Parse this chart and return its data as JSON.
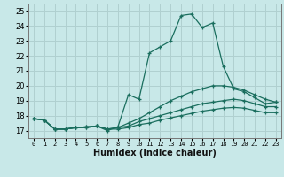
{
  "title": "",
  "xlabel": "Humidex (Indice chaleur)",
  "ylabel": "",
  "bg_color": "#c8e8e8",
  "grid_color": "#b0d0d0",
  "line_color": "#1a6e5e",
  "xlim": [
    -0.5,
    23.5
  ],
  "ylim": [
    16.5,
    25.5
  ],
  "xticks": [
    0,
    1,
    2,
    3,
    4,
    5,
    6,
    7,
    8,
    9,
    10,
    11,
    12,
    13,
    14,
    15,
    16,
    17,
    18,
    19,
    20,
    21,
    22,
    23
  ],
  "yticks": [
    17,
    18,
    19,
    20,
    21,
    22,
    23,
    24,
    25
  ],
  "lines": [
    {
      "x": [
        0,
        1,
        2,
        3,
        4,
        5,
        6,
        7,
        8,
        9,
        10,
        11,
        12,
        13,
        14,
        15,
        16,
        17,
        18,
        19,
        20,
        21,
        22,
        23
      ],
      "y": [
        17.8,
        17.7,
        17.1,
        17.1,
        17.2,
        17.25,
        17.3,
        17.0,
        17.25,
        19.4,
        19.1,
        22.2,
        22.6,
        23.0,
        24.7,
        24.8,
        23.9,
        24.2,
        21.3,
        19.8,
        19.6,
        19.2,
        18.8,
        18.9
      ]
    },
    {
      "x": [
        0,
        1,
        2,
        3,
        4,
        5,
        6,
        7,
        8,
        9,
        10,
        11,
        12,
        13,
        14,
        15,
        16,
        17,
        18,
        19,
        20,
        21,
        22,
        23
      ],
      "y": [
        17.8,
        17.7,
        17.1,
        17.1,
        17.2,
        17.25,
        17.3,
        17.1,
        17.2,
        17.5,
        17.8,
        18.2,
        18.6,
        19.0,
        19.3,
        19.6,
        19.8,
        20.0,
        20.0,
        19.9,
        19.7,
        19.4,
        19.1,
        18.9
      ]
    },
    {
      "x": [
        0,
        1,
        2,
        3,
        4,
        5,
        6,
        7,
        8,
        9,
        10,
        11,
        12,
        13,
        14,
        15,
        16,
        17,
        18,
        19,
        20,
        21,
        22,
        23
      ],
      "y": [
        17.8,
        17.7,
        17.1,
        17.1,
        17.2,
        17.2,
        17.3,
        17.1,
        17.2,
        17.3,
        17.6,
        17.8,
        18.0,
        18.2,
        18.4,
        18.6,
        18.8,
        18.9,
        19.0,
        19.1,
        19.0,
        18.8,
        18.6,
        18.6
      ]
    },
    {
      "x": [
        0,
        1,
        2,
        3,
        4,
        5,
        6,
        7,
        8,
        9,
        10,
        11,
        12,
        13,
        14,
        15,
        16,
        17,
        18,
        19,
        20,
        21,
        22,
        23
      ],
      "y": [
        17.8,
        17.7,
        17.1,
        17.1,
        17.2,
        17.2,
        17.3,
        17.1,
        17.1,
        17.2,
        17.4,
        17.5,
        17.7,
        17.85,
        18.0,
        18.15,
        18.3,
        18.4,
        18.5,
        18.55,
        18.5,
        18.35,
        18.2,
        18.2
      ]
    }
  ]
}
